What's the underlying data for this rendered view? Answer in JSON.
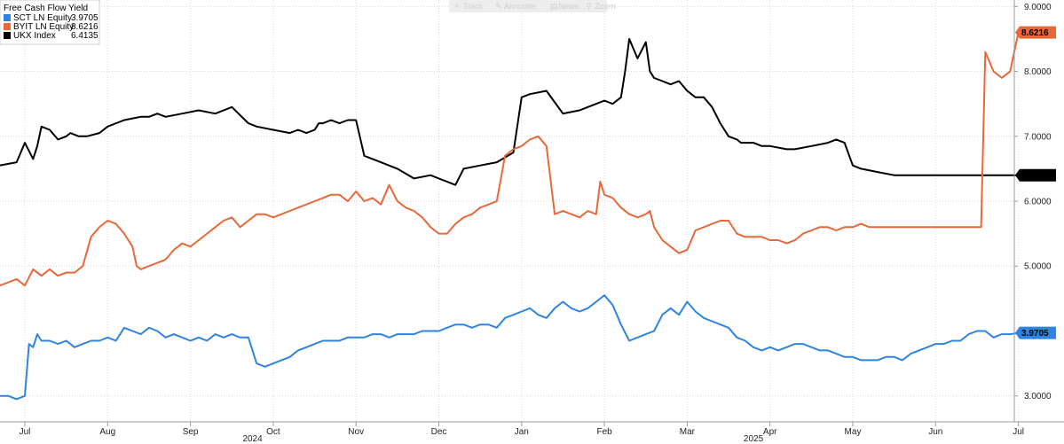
{
  "toolbar": {
    "items": [
      {
        "icon": "plus-icon",
        "label": "Track"
      },
      {
        "icon": "pencil-icon",
        "label": "Annotate"
      },
      {
        "icon": "document-icon",
        "label": "News"
      },
      {
        "icon": "magnifier-icon",
        "label": "Zoom"
      }
    ]
  },
  "chart_data": {
    "type": "line",
    "title": "Free Cash Flow Yield",
    "xlabel": "",
    "ylabel": "",
    "ylim": [
      2.6,
      9.1
    ],
    "x_range": [
      0,
      12.2
    ],
    "y_ticks": [
      {
        "value": 3,
        "label": "3.0000"
      },
      {
        "value": 5,
        "label": "5.0000"
      },
      {
        "value": 6,
        "label": "6.0000"
      },
      {
        "value": 7,
        "label": "7.0000"
      },
      {
        "value": 8,
        "label": "8.0000"
      },
      {
        "value": 9,
        "label": "9.0000"
      }
    ],
    "x_ticks": [
      {
        "value": 0.0,
        "label": "Jul"
      },
      {
        "value": 1.0,
        "label": "Aug"
      },
      {
        "value": 2.0,
        "label": "Sep"
      },
      {
        "value": 3.0,
        "label": "Oct"
      },
      {
        "value": 4.0,
        "label": "Nov"
      },
      {
        "value": 5.0,
        "label": "Dec"
      },
      {
        "value": 6.0,
        "label": "Jan"
      },
      {
        "value": 7.0,
        "label": "Feb"
      },
      {
        "value": 8.0,
        "label": "Mar"
      },
      {
        "value": 9.0,
        "label": "Apr"
      },
      {
        "value": 10.0,
        "label": "May"
      },
      {
        "value": 11.0,
        "label": "Jun"
      },
      {
        "value": 12.0,
        "label": "Jul"
      }
    ],
    "year_labels": [
      {
        "value": 2.75,
        "label": "2024"
      },
      {
        "value": 8.8,
        "label": "2025"
      }
    ],
    "series": [
      {
        "name": "UKX Index",
        "legend_label": "UKX Index",
        "last_label": "6.4135",
        "color": "#000000",
        "x": [
          -0.3,
          -0.1,
          0.0,
          0.1,
          0.15,
          0.2,
          0.3,
          0.4,
          0.5,
          0.55,
          0.65,
          0.75,
          0.9,
          1.0,
          1.2,
          1.4,
          1.5,
          1.6,
          1.7,
          1.9,
          2.1,
          2.3,
          2.5,
          2.7,
          2.8,
          3.0,
          3.2,
          3.3,
          3.4,
          3.5,
          3.55,
          3.6,
          3.7,
          3.8,
          3.9,
          4.0,
          4.1,
          4.3,
          4.5,
          4.7,
          4.9,
          5.0,
          5.1,
          5.2,
          5.3,
          5.5,
          5.7,
          5.9,
          6.0,
          6.1,
          6.3,
          6.5,
          6.7,
          6.8,
          6.9,
          7.0,
          7.1,
          7.2,
          7.25,
          7.3,
          7.4,
          7.5,
          7.55,
          7.6,
          7.7,
          7.8,
          7.9,
          8.0,
          8.1,
          8.2,
          8.3,
          8.4,
          8.5,
          8.6,
          8.65,
          8.7,
          8.8,
          8.9,
          9.0,
          9.2,
          9.3,
          9.5,
          9.7,
          9.8,
          9.9,
          10.0,
          10.1,
          10.3,
          10.5,
          10.7,
          10.9,
          11.0,
          11.2,
          11.4,
          11.5,
          11.6,
          11.65,
          11.7,
          11.8,
          11.9,
          12.0
        ],
        "values": [
          6.55,
          6.6,
          6.9,
          6.65,
          6.85,
          7.15,
          7.1,
          6.95,
          7.0,
          7.05,
          7.0,
          7.0,
          7.05,
          7.15,
          7.25,
          7.3,
          7.3,
          7.35,
          7.3,
          7.35,
          7.4,
          7.35,
          7.45,
          7.2,
          7.15,
          7.1,
          7.05,
          7.1,
          7.05,
          7.1,
          7.2,
          7.2,
          7.25,
          7.2,
          7.25,
          7.25,
          6.7,
          6.6,
          6.5,
          6.35,
          6.4,
          6.35,
          6.3,
          6.25,
          6.5,
          6.55,
          6.6,
          6.75,
          7.6,
          7.65,
          7.7,
          7.35,
          7.4,
          7.45,
          7.5,
          7.55,
          7.5,
          7.6,
          8.0,
          8.5,
          8.2,
          8.45,
          8.0,
          7.9,
          7.85,
          7.8,
          7.85,
          7.7,
          7.6,
          7.6,
          7.45,
          7.2,
          7.0,
          6.95,
          6.9,
          6.9,
          6.9,
          6.85,
          6.85,
          6.8,
          6.8,
          6.85,
          6.9,
          6.95,
          6.9,
          6.55,
          6.5,
          6.45,
          6.4,
          6.4,
          6.4,
          6.4,
          6.4,
          6.4,
          6.4,
          6.4,
          6.4,
          6.4,
          6.4,
          6.4,
          6.4
        ]
      },
      {
        "name": "BYIT LN Equity",
        "legend_label": "BYIT LN Equity",
        "last_label": "8.6216",
        "color": "#e8683a",
        "x": [
          -0.3,
          -0.2,
          -0.1,
          0.0,
          0.1,
          0.2,
          0.3,
          0.4,
          0.5,
          0.6,
          0.7,
          0.8,
          0.9,
          1.0,
          1.1,
          1.2,
          1.3,
          1.35,
          1.4,
          1.5,
          1.6,
          1.7,
          1.8,
          1.9,
          2.0,
          2.1,
          2.2,
          2.3,
          2.4,
          2.5,
          2.6,
          2.7,
          2.8,
          2.9,
          3.0,
          3.1,
          3.2,
          3.3,
          3.4,
          3.5,
          3.6,
          3.7,
          3.8,
          3.9,
          4.0,
          4.1,
          4.2,
          4.3,
          4.4,
          4.5,
          4.6,
          4.7,
          4.8,
          4.9,
          5.0,
          5.1,
          5.2,
          5.3,
          5.4,
          5.5,
          5.6,
          5.7,
          5.8,
          5.9,
          6.0,
          6.1,
          6.2,
          6.3,
          6.4,
          6.5,
          6.6,
          6.7,
          6.8,
          6.9,
          6.95,
          7.0,
          7.1,
          7.2,
          7.3,
          7.4,
          7.5,
          7.55,
          7.6,
          7.7,
          7.8,
          7.9,
          8.0,
          8.1,
          8.2,
          8.3,
          8.4,
          8.5,
          8.6,
          8.7,
          8.8,
          8.9,
          9.0,
          9.1,
          9.2,
          9.3,
          9.4,
          9.5,
          9.6,
          9.7,
          9.8,
          9.9,
          10.0,
          10.1,
          10.2,
          10.3,
          10.4,
          10.5,
          10.6,
          10.7,
          10.8,
          10.9,
          11.0,
          11.1,
          11.2,
          11.3,
          11.4,
          11.5,
          11.55,
          11.6,
          11.7,
          11.8,
          11.9,
          12.0
        ],
        "values": [
          4.7,
          4.75,
          4.8,
          4.7,
          4.95,
          4.85,
          4.95,
          4.85,
          4.9,
          4.9,
          5.0,
          5.45,
          5.6,
          5.7,
          5.65,
          5.5,
          5.3,
          5.0,
          4.95,
          5.0,
          5.05,
          5.1,
          5.25,
          5.35,
          5.3,
          5.4,
          5.5,
          5.6,
          5.7,
          5.75,
          5.6,
          5.7,
          5.8,
          5.8,
          5.75,
          5.8,
          5.85,
          5.9,
          5.95,
          6.0,
          6.05,
          6.1,
          6.1,
          6.0,
          6.15,
          6.0,
          6.05,
          5.95,
          6.25,
          6.0,
          5.9,
          5.85,
          5.75,
          5.6,
          5.5,
          5.5,
          5.65,
          5.75,
          5.8,
          5.9,
          5.95,
          6.0,
          6.7,
          6.8,
          6.85,
          6.95,
          7.0,
          6.85,
          5.8,
          5.85,
          5.8,
          5.75,
          5.85,
          5.8,
          6.3,
          6.1,
          6.05,
          5.9,
          5.8,
          5.75,
          5.8,
          5.85,
          5.6,
          5.4,
          5.3,
          5.2,
          5.25,
          5.55,
          5.6,
          5.65,
          5.7,
          5.7,
          5.5,
          5.45,
          5.45,
          5.45,
          5.4,
          5.4,
          5.35,
          5.4,
          5.5,
          5.55,
          5.6,
          5.6,
          5.55,
          5.6,
          5.6,
          5.65,
          5.6,
          5.6,
          5.6,
          5.6,
          5.6,
          5.6,
          5.6,
          5.6,
          5.6,
          5.6,
          5.6,
          5.6,
          5.6,
          5.6,
          5.6,
          8.3,
          8.0,
          7.9,
          8.0,
          8.6
        ],
        "note": "values after 11.55 on x are approximate, ending at 8.62"
      },
      {
        "name": "SCT LN Equity",
        "legend_label": "SCT LN Equity",
        "last_label": "3.9705",
        "color": "#2e84e0",
        "x": [
          -0.3,
          -0.2,
          -0.1,
          0.0,
          0.05,
          0.1,
          0.15,
          0.2,
          0.3,
          0.4,
          0.5,
          0.6,
          0.7,
          0.8,
          0.9,
          1.0,
          1.1,
          1.2,
          1.3,
          1.4,
          1.5,
          1.6,
          1.7,
          1.8,
          1.9,
          2.0,
          2.1,
          2.2,
          2.3,
          2.4,
          2.5,
          2.6,
          2.7,
          2.8,
          2.9,
          3.0,
          3.1,
          3.2,
          3.3,
          3.4,
          3.5,
          3.6,
          3.7,
          3.8,
          3.9,
          4.0,
          4.1,
          4.2,
          4.3,
          4.4,
          4.5,
          4.6,
          4.7,
          4.8,
          4.9,
          5.0,
          5.1,
          5.2,
          5.3,
          5.4,
          5.5,
          5.6,
          5.7,
          5.8,
          5.9,
          6.0,
          6.1,
          6.2,
          6.3,
          6.4,
          6.5,
          6.6,
          6.7,
          6.8,
          6.9,
          7.0,
          7.1,
          7.2,
          7.3,
          7.4,
          7.5,
          7.6,
          7.7,
          7.8,
          7.9,
          8.0,
          8.1,
          8.2,
          8.3,
          8.4,
          8.5,
          8.6,
          8.7,
          8.8,
          8.9,
          9.0,
          9.1,
          9.2,
          9.3,
          9.4,
          9.5,
          9.6,
          9.7,
          9.8,
          9.9,
          10.0,
          10.1,
          10.2,
          10.3,
          10.4,
          10.5,
          10.6,
          10.7,
          10.8,
          10.9,
          11.0,
          11.1,
          11.2,
          11.3,
          11.4,
          11.5,
          11.6,
          11.7,
          11.8,
          11.9,
          12.0
        ],
        "values": [
          3.0,
          3.0,
          2.95,
          3.0,
          3.8,
          3.75,
          3.95,
          3.85,
          3.85,
          3.8,
          3.85,
          3.75,
          3.8,
          3.85,
          3.85,
          3.9,
          3.85,
          4.05,
          4.0,
          3.95,
          4.05,
          4.0,
          3.9,
          3.95,
          3.9,
          3.85,
          3.9,
          3.85,
          3.95,
          3.9,
          3.95,
          3.9,
          3.9,
          3.5,
          3.45,
          3.5,
          3.55,
          3.6,
          3.7,
          3.75,
          3.8,
          3.85,
          3.85,
          3.85,
          3.9,
          3.9,
          3.9,
          3.95,
          3.95,
          3.9,
          3.95,
          3.95,
          3.95,
          4.0,
          4.0,
          4.0,
          4.05,
          4.1,
          4.1,
          4.05,
          4.1,
          4.1,
          4.05,
          4.2,
          4.25,
          4.3,
          4.35,
          4.25,
          4.2,
          4.35,
          4.45,
          4.35,
          4.3,
          4.35,
          4.45,
          4.55,
          4.4,
          4.1,
          3.85,
          3.9,
          3.95,
          4.0,
          4.25,
          4.35,
          4.25,
          4.45,
          4.3,
          4.2,
          4.15,
          4.1,
          4.05,
          3.9,
          3.85,
          3.75,
          3.7,
          3.75,
          3.7,
          3.75,
          3.8,
          3.8,
          3.75,
          3.7,
          3.7,
          3.65,
          3.6,
          3.6,
          3.55,
          3.55,
          3.55,
          3.6,
          3.6,
          3.55,
          3.65,
          3.7,
          3.75,
          3.8,
          3.8,
          3.85,
          3.85,
          3.95,
          4.0,
          4.0,
          3.9,
          3.95,
          3.95,
          3.97
        ]
      }
    ]
  }
}
